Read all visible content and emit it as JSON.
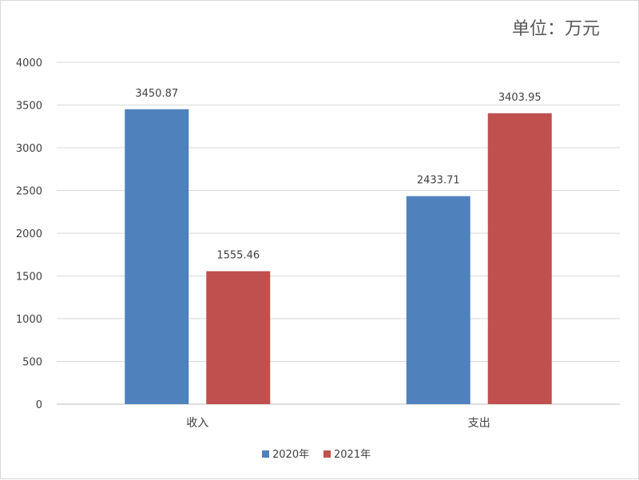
{
  "chart_data": {
    "type": "bar",
    "unit_label": "单位：万元",
    "categories": [
      "收入",
      "支出"
    ],
    "series": [
      {
        "name": "2020年",
        "values": [
          3450.87,
          2433.71
        ],
        "color": "#4f81bd"
      },
      {
        "name": "2021年",
        "values": [
          1555.46,
          3403.95
        ],
        "color": "#c0504d"
      }
    ],
    "data_labels": [
      [
        "3450.87",
        "2433.71"
      ],
      [
        "1555.46",
        "3403.95"
      ]
    ],
    "ylim": [
      0,
      4000
    ],
    "yticks": [
      0,
      500,
      1000,
      1500,
      2000,
      2500,
      3000,
      3500,
      4000
    ],
    "grid": true,
    "legend_position": "bottom"
  }
}
